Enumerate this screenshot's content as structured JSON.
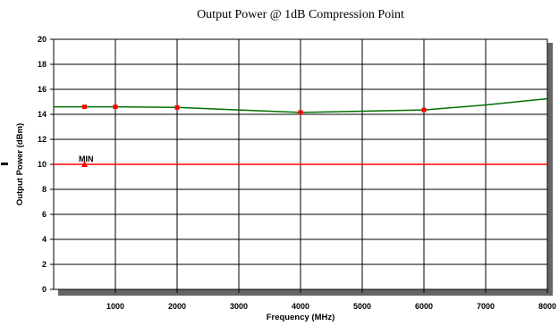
{
  "chart_data": {
    "type": "line",
    "title": "Output Power @ 1dB Compression Point",
    "xlabel": "Frequency (MHz)",
    "ylabel": "Output Power (dBm)",
    "xlim": [
      0,
      8000
    ],
    "ylim": [
      0,
      20
    ],
    "xticks": [
      1000,
      2000,
      3000,
      4000,
      5000,
      6000,
      7000,
      8000
    ],
    "yticks": [
      0,
      2,
      4,
      6,
      8,
      10,
      12,
      14,
      16,
      18,
      20
    ],
    "grid": true,
    "series": [
      {
        "color": "#007000",
        "x": [
          0,
          1000,
          2000,
          3000,
          4000,
          5000,
          6000,
          7000,
          8000
        ],
        "y": [
          14.6,
          14.6,
          14.55,
          14.35,
          14.15,
          14.25,
          14.35,
          14.75,
          15.25
        ],
        "markers_x": [
          500,
          1000,
          2000,
          4000,
          6000
        ],
        "markers_y": [
          14.6,
          14.6,
          14.55,
          14.15,
          14.35
        ],
        "marker_color": "#ff0000",
        "marker": "square"
      },
      {
        "name": "MIN",
        "color": "#ff0000",
        "x": [
          0,
          8000
        ],
        "y": [
          10,
          10
        ],
        "markers_x": [
          500
        ],
        "markers_y": [
          10
        ],
        "marker_color": "#ff0000",
        "marker": "triangle"
      }
    ]
  }
}
